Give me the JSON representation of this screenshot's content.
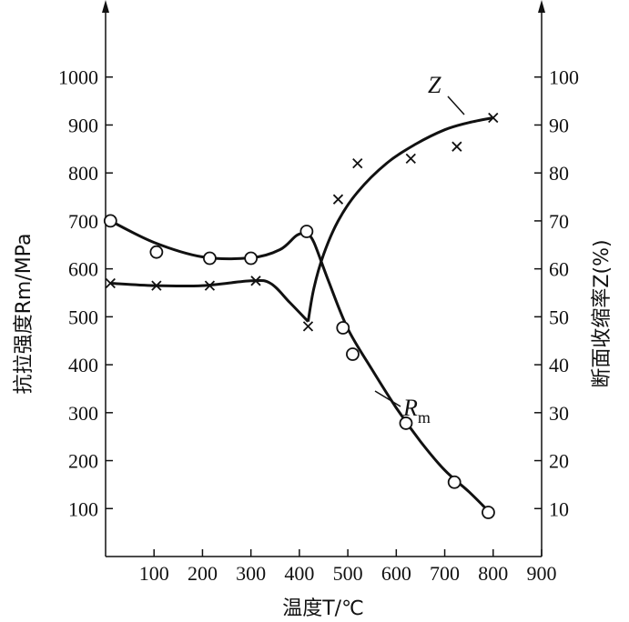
{
  "chart_data": {
    "type": "line",
    "xlabel": "温度T/℃",
    "ylabel_left": "抗拉强度Rm/MPa",
    "ylabel_right": "断面收缩率Z(%)",
    "xlim": [
      0,
      900
    ],
    "ylim_left": [
      0,
      1100
    ],
    "ylim_right": [
      0,
      110
    ],
    "x_ticks": [
      "100",
      "200",
      "300",
      "400",
      "500",
      "600",
      "700",
      "800",
      "900"
    ],
    "y_ticks_left": [
      "100",
      "200",
      "300",
      "400",
      "500",
      "600",
      "700",
      "800",
      "900",
      "1000"
    ],
    "y_ticks_right": [
      "10",
      "20",
      "30",
      "40",
      "50",
      "60",
      "70",
      "80",
      "90",
      "100"
    ],
    "series": [
      {
        "name": "Rm",
        "label_main": "R",
        "label_sub": "m",
        "axis": "left",
        "marker": "circle",
        "points": [
          [
            10,
            700
          ],
          [
            105,
            635
          ],
          [
            215,
            622
          ],
          [
            300,
            622
          ],
          [
            415,
            678
          ],
          [
            490,
            477
          ],
          [
            510,
            422
          ],
          [
            620,
            278
          ],
          [
            720,
            155
          ],
          [
            790,
            92
          ]
        ],
        "curve": [
          [
            10,
            700
          ],
          [
            100,
            655
          ],
          [
            200,
            625
          ],
          [
            300,
            623
          ],
          [
            360,
            640
          ],
          [
            395,
            670
          ],
          [
            415,
            672
          ],
          [
            430,
            655
          ],
          [
            460,
            575
          ],
          [
            500,
            475
          ],
          [
            550,
            390
          ],
          [
            600,
            310
          ],
          [
            650,
            240
          ],
          [
            700,
            180
          ],
          [
            750,
            135
          ],
          [
            790,
            95
          ]
        ]
      },
      {
        "name": "Z",
        "label_main": "Z",
        "axis": "right",
        "marker": "x",
        "points": [
          [
            10,
            57
          ],
          [
            105,
            56.5
          ],
          [
            215,
            56.5
          ],
          [
            310,
            57.5
          ],
          [
            418,
            48
          ],
          [
            480,
            74.5
          ],
          [
            520,
            82
          ],
          [
            630,
            83
          ],
          [
            725,
            85.5
          ],
          [
            800,
            91.5
          ]
        ],
        "curve": [
          [
            10,
            57
          ],
          [
            100,
            56.5
          ],
          [
            200,
            56.5
          ],
          [
            300,
            57.5
          ],
          [
            340,
            57
          ],
          [
            380,
            53
          ],
          [
            418,
            49
          ],
          [
            430,
            56
          ],
          [
            450,
            63
          ],
          [
            480,
            70
          ],
          [
            520,
            76
          ],
          [
            580,
            82
          ],
          [
            640,
            86
          ],
          [
            700,
            89
          ],
          [
            750,
            90.5
          ],
          [
            800,
            91.5
          ]
        ]
      }
    ]
  }
}
